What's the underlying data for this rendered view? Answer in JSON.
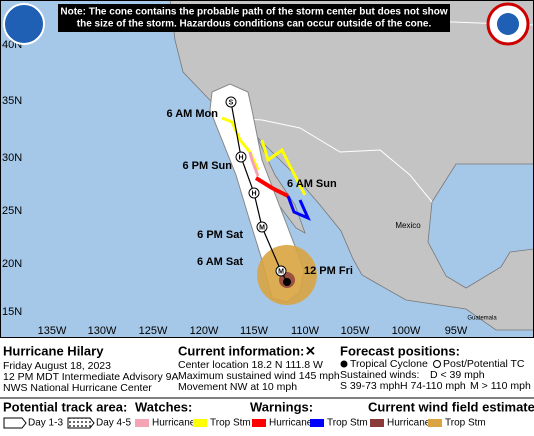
{
  "note": [
    "Note: The cone contains the probable path of the storm center but does not show",
    "the size of the storm. Hazardous conditions can occur outside of the cone."
  ],
  "map": {
    "lat_labels": [
      "40N",
      "35N",
      "30N",
      "25N",
      "20N",
      "15N"
    ],
    "lon_labels": [
      "135W",
      "130W",
      "125W",
      "120W",
      "115W",
      "110W",
      "105W",
      "100W",
      "95W"
    ],
    "places": [
      "Mexico",
      "Guatemala"
    ],
    "current_label": "12 PM Fri",
    "forecast_points": [
      {
        "time": "6 AM Sat",
        "intensity": "M"
      },
      {
        "time": "6 PM Sat",
        "intensity": "M"
      },
      {
        "time": "6 AM Sun",
        "intensity": "H"
      },
      {
        "time": "6 PM Sun",
        "intensity": "H"
      },
      {
        "time": "6 AM Mon",
        "intensity": "S"
      }
    ]
  },
  "storm": {
    "name": "Hurricane Hilary",
    "date": "Friday August 18, 2023",
    "advisory": "12 PM MDT Intermediate Advisory 9A",
    "office": "NWS National Hurricane Center"
  },
  "current_info": {
    "heading": "Current information:",
    "symbol": "✕",
    "lines": [
      "Center location 18.2 N 111.8 W",
      "Maximum sustained wind 145 mph",
      "Movement NW at 10 mph"
    ]
  },
  "forecast_legend": {
    "heading": "Forecast positions:",
    "tropical": "Tropical Cyclone",
    "post": "Post/Potential TC",
    "winds_heading": "Sustained winds:",
    "classes": [
      "D < 39 mph",
      "S 39-73 mph",
      "H 74-110 mph",
      "M > 110 mph"
    ]
  },
  "legend": {
    "track": {
      "heading": "Potential track area:",
      "items": [
        "Day 1-3",
        "Day 4-5"
      ]
    },
    "watches": {
      "heading": "Watches:",
      "items": [
        "Hurricane",
        "Trop Stm"
      ]
    },
    "warnings": {
      "heading": "Warnings:",
      "items": [
        "Hurricane",
        "Trop Stm"
      ]
    },
    "wind_field": {
      "heading": "Current wind field estimate:",
      "items": [
        "Hurricane",
        "Trop Stm"
      ]
    }
  }
}
